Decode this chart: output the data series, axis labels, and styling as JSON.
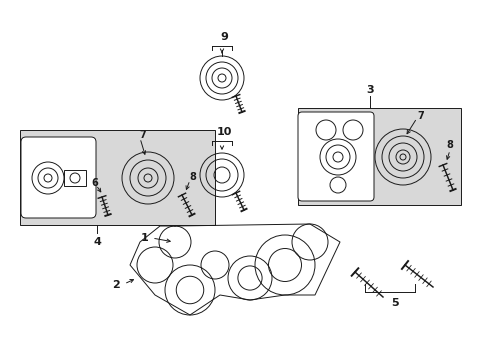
{
  "bg_color": "#ffffff",
  "line_color": "#1a1a1a",
  "shaded_box_color": "#d8d8d8",
  "fig_width": 4.89,
  "fig_height": 3.6,
  "dpi": 100
}
